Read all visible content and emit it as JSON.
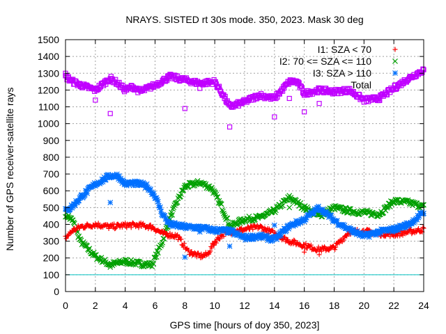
{
  "chart_data": {
    "type": "scatter",
    "title": "NRAYS. SISTED rt 30s mode. 350, 2023. Mask 30 deg",
    "xlabel": "GPS time [hours of doy 350, 2023]",
    "ylabel": "Number of GPS receiver-satellite rays",
    "xlim": [
      0,
      24
    ],
    "ylim": [
      0,
      1500
    ],
    "xticks": [
      "0",
      "2",
      "4",
      "6",
      "8",
      "10",
      "12",
      "14",
      "16",
      "18",
      "20",
      "22",
      "24"
    ],
    "yticks": [
      "0",
      "100",
      "200",
      "300",
      "400",
      "500",
      "600",
      "700",
      "800",
      "900",
      "1000",
      "1100",
      "1200",
      "1300",
      "1400",
      "1500"
    ],
    "grid": true,
    "legend_position": "top-right",
    "reference_line": {
      "y": 100,
      "color": "#00c0c0"
    },
    "series": [
      {
        "name": "I1: SZA < 70",
        "marker": "+",
        "color": "#ff0000",
        "x": [
          0,
          0.5,
          1,
          2,
          3,
          4,
          5,
          5.8,
          6.5,
          7.5,
          8.2,
          9,
          9.5,
          10,
          10.5,
          11,
          12,
          13,
          14,
          15,
          16,
          17,
          18,
          19,
          20,
          21,
          22,
          23,
          24
        ],
        "y": [
          320,
          365,
          385,
          400,
          385,
          395,
          395,
          385,
          345,
          330,
          240,
          210,
          220,
          295,
          340,
          355,
          370,
          385,
          345,
          300,
          275,
          250,
          260,
          355,
          360,
          345,
          340,
          355,
          370
        ],
        "outliers": {
          "x": [
            16,
            17
          ],
          "y": [
            235,
            220
          ]
        }
      },
      {
        "name": "I2: 70 <= SZA <= 110",
        "marker": "x",
        "color": "#00a000",
        "x": [
          0,
          0.5,
          1,
          2,
          3,
          4,
          5,
          5.8,
          6.5,
          7,
          7.5,
          8,
          9,
          9.8,
          10.5,
          11,
          12,
          13,
          14,
          15,
          16,
          17,
          18,
          19,
          20,
          21,
          22,
          23,
          24
        ],
        "y": [
          460,
          420,
          300,
          210,
          160,
          180,
          165,
          160,
          300,
          440,
          540,
          625,
          650,
          615,
          500,
          390,
          430,
          440,
          480,
          560,
          500,
          450,
          500,
          480,
          470,
          460,
          540,
          530,
          505
        ],
        "outliers": {
          "x": [
            3,
            15
          ],
          "y": [
            145,
            500
          ]
        }
      },
      {
        "name": "I3: SZA > 110",
        "marker": "*",
        "color": "#0070ff",
        "x": [
          0,
          0.5,
          1,
          2,
          3,
          3.5,
          4,
          4.5,
          5,
          5.5,
          6,
          6.5,
          7,
          8,
          9,
          10,
          11,
          12,
          13,
          14,
          15,
          16,
          17,
          18,
          19,
          20,
          21,
          22,
          23,
          24
        ],
        "y": [
          480,
          510,
          560,
          640,
          690,
          690,
          640,
          645,
          640,
          625,
          570,
          460,
          400,
          385,
          380,
          365,
          360,
          320,
          330,
          310,
          390,
          430,
          500,
          425,
          370,
          330,
          355,
          370,
          400,
          470
        ],
        "outliers": {
          "x": [
            3,
            8,
            9,
            11,
            14
          ],
          "y": [
            530,
            205,
            355,
            270,
            395
          ]
        }
      },
      {
        "name": "Total",
        "marker": "square",
        "color": "#c000ff",
        "x": [
          0,
          0.5,
          1,
          2,
          3,
          3.5,
          4,
          4.5,
          5,
          6,
          7,
          8,
          9,
          10,
          10.5,
          11,
          12,
          13,
          14,
          14.5,
          15,
          15.5,
          16,
          17,
          18,
          19,
          20,
          21,
          22,
          23,
          24
        ],
        "y": [
          1280,
          1250,
          1230,
          1200,
          1270,
          1240,
          1200,
          1220,
          1190,
          1230,
          1280,
          1260,
          1240,
          1250,
          1180,
          1100,
          1130,
          1170,
          1150,
          1200,
          1250,
          1250,
          1180,
          1200,
          1190,
          1200,
          1140,
          1150,
          1210,
          1270,
          1320
        ],
        "outliers": {
          "x": [
            0,
            1,
            2,
            3,
            8,
            9,
            11,
            14,
            15,
            16,
            17
          ],
          "y": [
            1300,
            1220,
            1140,
            1060,
            1090,
            1210,
            980,
            1040,
            1150,
            1070,
            1120
          ]
        }
      }
    ]
  }
}
